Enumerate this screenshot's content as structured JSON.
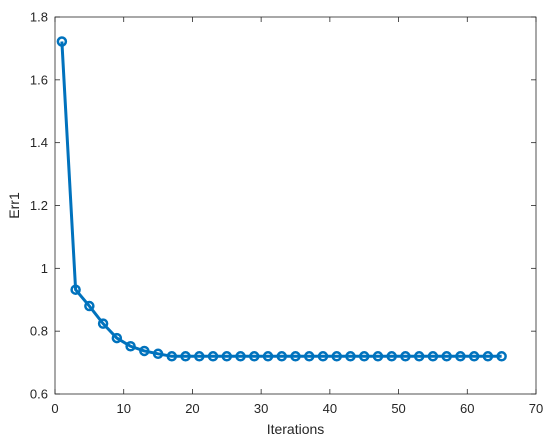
{
  "chart_data": {
    "type": "line",
    "title": "",
    "xlabel": "Iterations",
    "ylabel": "Err1",
    "xlim": [
      0,
      70
    ],
    "ylim": [
      0.6,
      1.8
    ],
    "xticks": [
      0,
      10,
      20,
      30,
      40,
      50,
      60,
      70
    ],
    "xtick_labels": [
      "0",
      "10",
      "20",
      "30",
      "40",
      "50",
      "60",
      "70"
    ],
    "yticks": [
      0.6,
      0.8,
      1.0,
      1.2,
      1.4,
      1.6,
      1.8
    ],
    "ytick_labels": [
      "0.6",
      "0.8",
      "1",
      "1.2",
      "1.4",
      "1.6",
      "1.8"
    ],
    "grid": false,
    "series": [
      {
        "color": "#0072bd",
        "marker": "circle",
        "x": [
          1,
          3,
          5,
          7,
          9,
          11,
          13,
          15,
          17,
          19,
          21,
          23,
          25,
          27,
          29,
          31,
          33,
          35,
          37,
          39,
          41,
          43,
          45,
          47,
          49,
          51,
          53,
          55,
          57,
          59,
          61,
          63,
          65
        ],
        "y": [
          1.722,
          0.932,
          0.88,
          0.824,
          0.778,
          0.752,
          0.737,
          0.728,
          0.72,
          0.72,
          0.72,
          0.72,
          0.72,
          0.72,
          0.72,
          0.72,
          0.72,
          0.72,
          0.72,
          0.72,
          0.72,
          0.72,
          0.72,
          0.72,
          0.72,
          0.72,
          0.72,
          0.72,
          0.72,
          0.72,
          0.72,
          0.72,
          0.72
        ]
      }
    ]
  }
}
